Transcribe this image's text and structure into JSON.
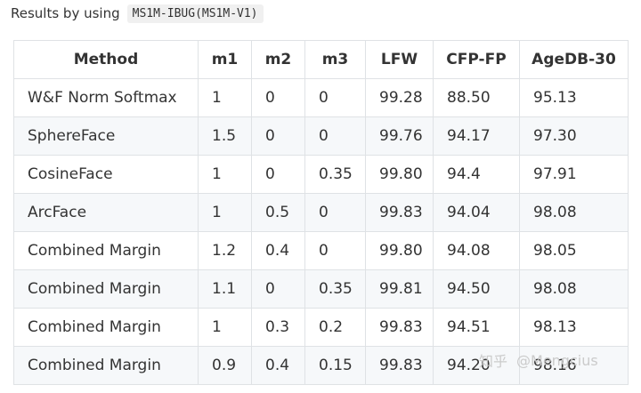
{
  "caption": {
    "text": "Results by using",
    "code": "MS1M-IBUG(MS1M-V1)"
  },
  "table": {
    "headers": [
      "Method",
      "m1",
      "m2",
      "m3",
      "LFW",
      "CFP-FP",
      "AgeDB-30"
    ],
    "rows": [
      [
        "W&F Norm Softmax",
        "1",
        "0",
        "0",
        "99.28",
        "88.50",
        "95.13"
      ],
      [
        "SphereFace",
        "1.5",
        "0",
        "0",
        "99.76",
        "94.17",
        "97.30"
      ],
      [
        "CosineFace",
        "1",
        "0",
        "0.35",
        "99.80",
        "94.4",
        "97.91"
      ],
      [
        "ArcFace",
        "1",
        "0.5",
        "0",
        "99.83",
        "94.04",
        "98.08"
      ],
      [
        "Combined Margin",
        "1.2",
        "0.4",
        "0",
        "99.80",
        "94.08",
        "98.05"
      ],
      [
        "Combined Margin",
        "1.1",
        "0",
        "0.35",
        "99.81",
        "94.50",
        "98.08"
      ],
      [
        "Combined Margin",
        "1",
        "0.3",
        "0.2",
        "99.83",
        "94.51",
        "98.13"
      ],
      [
        "Combined Margin",
        "0.9",
        "0.4",
        "0.15",
        "99.83",
        "94.20",
        "98.16"
      ]
    ]
  },
  "watermark": {
    "site": "知乎",
    "handle": "@Mengcius"
  }
}
